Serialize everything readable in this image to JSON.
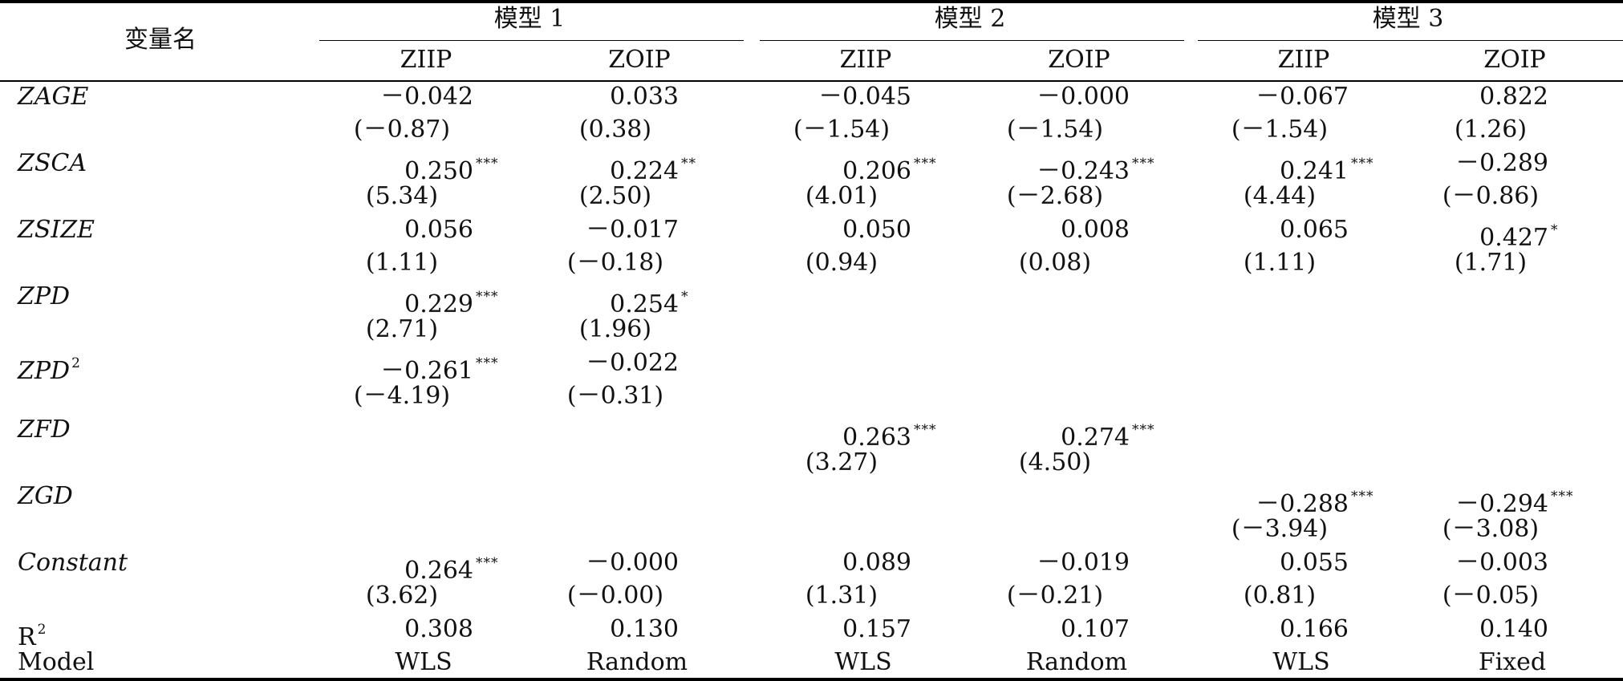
{
  "header": {
    "var_col": "变量名",
    "models": [
      "模型 1",
      "模型 2",
      "模型 3"
    ],
    "columns": [
      "ZIIP",
      "ZOIP",
      "ZIIP",
      "ZOIP",
      "ZIIP",
      "ZOIP"
    ]
  },
  "rows": [
    {
      "name": "ZAGE",
      "sup": "",
      "coef": [
        [
          "－0.042",
          ""
        ],
        [
          "0.033",
          ""
        ],
        [
          "－0.045",
          ""
        ],
        [
          "－0.000",
          ""
        ],
        [
          "－0.067",
          ""
        ],
        [
          "0.822",
          ""
        ]
      ],
      "t": [
        "(－0.87)",
        "(0.38)",
        "(－1.54)",
        "(－1.54)",
        "(－1.54)",
        "(1.26)"
      ]
    },
    {
      "name": "ZSCA",
      "sup": "",
      "coef": [
        [
          "0.250",
          "***"
        ],
        [
          "0.224",
          "**"
        ],
        [
          "0.206",
          "***"
        ],
        [
          "－0.243",
          "***"
        ],
        [
          "0.241",
          "***"
        ],
        [
          "－0.289",
          ""
        ]
      ],
      "t": [
        "(5.34)",
        "(2.50)",
        "(4.01)",
        "(－2.68)",
        "(4.44)",
        "(－0.86)"
      ]
    },
    {
      "name": "ZSIZE",
      "sup": "",
      "coef": [
        [
          "0.056",
          ""
        ],
        [
          "－0.017",
          ""
        ],
        [
          "0.050",
          ""
        ],
        [
          "0.008",
          ""
        ],
        [
          "0.065",
          ""
        ],
        [
          "0.427",
          "*"
        ]
      ],
      "t": [
        "(1.11)",
        "(－0.18)",
        "(0.94)",
        "(0.08)",
        "(1.11)",
        "(1.71)"
      ]
    },
    {
      "name": "ZPD",
      "sup": "",
      "coef": [
        [
          "0.229",
          "***"
        ],
        [
          "0.254",
          "*"
        ],
        [
          "",
          ""
        ],
        [
          "",
          ""
        ],
        [
          "",
          ""
        ],
        [
          "",
          ""
        ]
      ],
      "t": [
        "(2.71)",
        "(1.96)",
        "",
        "",
        "",
        ""
      ]
    },
    {
      "name": "ZPD",
      "sup": "2",
      "coef": [
        [
          "－0.261",
          "***"
        ],
        [
          "－0.022",
          ""
        ],
        [
          "",
          ""
        ],
        [
          "",
          ""
        ],
        [
          "",
          ""
        ],
        [
          "",
          ""
        ]
      ],
      "t": [
        "(－4.19)",
        "(－0.31)",
        "",
        "",
        "",
        ""
      ]
    },
    {
      "name": "ZFD",
      "sup": "",
      "coef": [
        [
          "",
          ""
        ],
        [
          "",
          ""
        ],
        [
          "0.263",
          "***"
        ],
        [
          "0.274",
          "***"
        ],
        [
          "",
          ""
        ],
        [
          "",
          ""
        ]
      ],
      "t": [
        "",
        "",
        "(3.27)",
        "(4.50)",
        "",
        ""
      ]
    },
    {
      "name": "ZGD",
      "sup": "",
      "coef": [
        [
          "",
          ""
        ],
        [
          "",
          ""
        ],
        [
          "",
          ""
        ],
        [
          "",
          ""
        ],
        [
          "－0.288",
          "***"
        ],
        [
          "－0.294",
          "***"
        ]
      ],
      "t": [
        "",
        "",
        "",
        "",
        "(－3.94)",
        "(－3.08)"
      ]
    },
    {
      "name": "Constant",
      "sup": "",
      "coef": [
        [
          "0.264",
          "***"
        ],
        [
          "－0.000",
          ""
        ],
        [
          "0.089",
          ""
        ],
        [
          "－0.019",
          ""
        ],
        [
          "0.055",
          ""
        ],
        [
          "－0.003",
          ""
        ]
      ],
      "t": [
        "(3.62)",
        "(－0.00)",
        "(1.31)",
        "(－0.21)",
        "(0.81)",
        "(－0.05)"
      ]
    }
  ],
  "r2": {
    "label": "R",
    "sup": "2",
    "values": [
      "0.308",
      "0.130",
      "0.157",
      "0.107",
      "0.166",
      "0.140"
    ]
  },
  "model": {
    "label": "Model",
    "values": [
      "WLS",
      "Random",
      "WLS",
      "Random",
      "WLS",
      "Fixed"
    ]
  }
}
